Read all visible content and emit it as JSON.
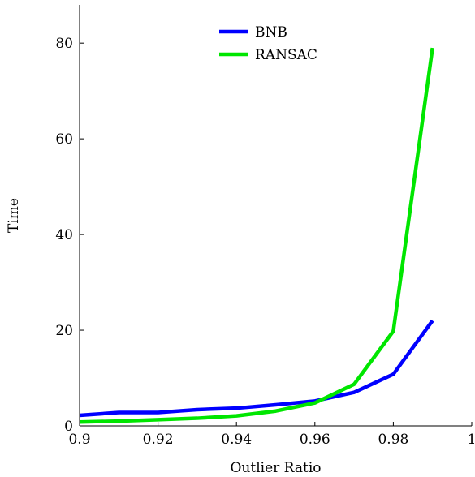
{
  "chart_data": {
    "type": "line",
    "title": "",
    "xlabel": "Outlier Ratio",
    "ylabel": "Time",
    "xlim": [
      0.9,
      1.0
    ],
    "ylim": [
      0,
      88
    ],
    "xticks": [
      0.9,
      0.92,
      0.94,
      0.96,
      0.98,
      1
    ],
    "xtick_labels": [
      "0.9",
      "0.92",
      "0.94",
      "0.96",
      "0.98",
      "1"
    ],
    "yticks": [
      0,
      20,
      40,
      60,
      80
    ],
    "ytick_labels": [
      "0",
      "20",
      "40",
      "60",
      "80"
    ],
    "grid": false,
    "legend_position": "top-center",
    "series": [
      {
        "name": "BNB",
        "color": "#0000ff",
        "x": [
          0.9,
          0.91,
          0.92,
          0.93,
          0.94,
          0.95,
          0.96,
          0.97,
          0.98,
          0.99
        ],
        "y": [
          2.2,
          2.8,
          2.8,
          3.4,
          3.7,
          4.4,
          5.2,
          7.0,
          10.8,
          22.0
        ]
      },
      {
        "name": "RANSAC",
        "color": "#00e600",
        "x": [
          0.9,
          0.91,
          0.92,
          0.93,
          0.94,
          0.95,
          0.96,
          0.97,
          0.98,
          0.99
        ],
        "y": [
          0.8,
          1.0,
          1.3,
          1.6,
          2.1,
          3.1,
          4.8,
          8.7,
          19.8,
          79.0
        ]
      }
    ]
  }
}
